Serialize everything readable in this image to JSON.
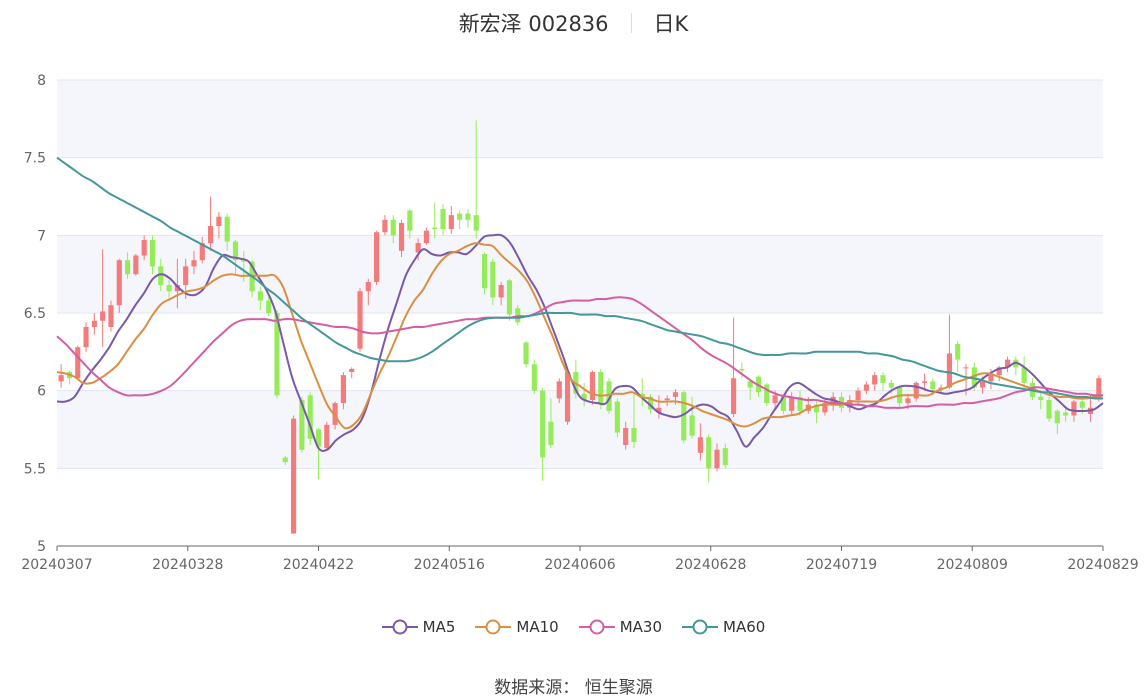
{
  "header": {
    "stock": "新宏泽 002836",
    "period": "日K"
  },
  "source": "数据来源：  恒生聚源",
  "colors": {
    "up": "#f37b7b",
    "down": "#96eb5a",
    "MA5": "#7a59a8",
    "MA10": "#da8f43",
    "MA30": "#d45ea3",
    "MA60": "#44989a"
  },
  "chart_data": {
    "type": "candlestick",
    "ylim": [
      5,
      8
    ],
    "yticks": [
      "5",
      "5.5",
      "6",
      "6.5",
      "7",
      "7.5",
      "8"
    ],
    "xtick_labels": [
      "20240307",
      "20240328",
      "20240422",
      "20240516",
      "20240606",
      "20240628",
      "20240719",
      "20240809",
      "20240829"
    ],
    "grid": true,
    "legend_position": "bottom",
    "candles": [
      [
        6.06,
        6.1,
        6.02,
        6.17
      ],
      [
        6.12,
        6.08,
        6.04,
        6.13
      ],
      [
        6.08,
        6.28,
        6.07,
        6.29
      ],
      [
        6.28,
        6.41,
        6.25,
        6.44
      ],
      [
        6.41,
        6.45,
        6.36,
        6.5
      ],
      [
        6.45,
        6.51,
        6.28,
        6.91
      ],
      [
        6.41,
        6.55,
        6.38,
        6.58
      ],
      [
        6.55,
        6.84,
        6.5,
        6.85
      ],
      [
        6.84,
        6.75,
        6.72,
        6.89
      ],
      [
        6.75,
        6.87,
        6.74,
        6.88
      ],
      [
        6.87,
        6.97,
        6.84,
        7.0
      ],
      [
        6.97,
        6.8,
        6.75,
        7.0
      ],
      [
        6.8,
        6.68,
        6.64,
        6.85
      ],
      [
        6.68,
        6.64,
        6.59,
        6.71
      ],
      [
        6.64,
        6.68,
        6.53,
        6.85
      ],
      [
        6.68,
        6.8,
        6.59,
        6.85
      ],
      [
        6.8,
        6.84,
        6.75,
        6.9
      ],
      [
        6.84,
        6.95,
        6.82,
        6.99
      ],
      [
        6.95,
        7.06,
        6.9,
        7.25
      ],
      [
        7.06,
        7.12,
        6.98,
        7.15
      ],
      [
        7.12,
        6.96,
        6.9,
        7.14
      ],
      [
        6.96,
        6.84,
        6.75,
        6.97
      ],
      [
        6.84,
        6.83,
        6.7,
        6.9
      ],
      [
        6.83,
        6.64,
        6.6,
        6.84
      ],
      [
        6.64,
        6.58,
        6.52,
        6.67
      ],
      [
        6.58,
        6.5,
        6.48,
        6.61
      ],
      [
        6.5,
        5.97,
        5.95,
        6.52
      ],
      [
        5.57,
        5.54,
        5.52,
        5.58
      ],
      [
        5.08,
        5.82,
        5.08,
        5.84
      ],
      [
        5.94,
        5.62,
        5.6,
        5.96
      ],
      [
        5.97,
        5.69,
        5.65,
        5.99
      ],
      [
        5.75,
        5.64,
        5.43,
        5.76
      ],
      [
        5.63,
        5.78,
        5.62,
        5.8
      ],
      [
        5.78,
        5.92,
        5.75,
        5.93
      ],
      [
        5.92,
        6.1,
        5.88,
        6.12
      ],
      [
        6.12,
        6.14,
        6.08,
        6.15
      ],
      [
        6.27,
        6.64,
        6.25,
        6.66
      ],
      [
        6.64,
        6.7,
        6.55,
        6.72
      ],
      [
        6.7,
        7.02,
        6.68,
        7.03
      ],
      [
        7.02,
        7.1,
        7.0,
        7.13
      ],
      [
        7.1,
        7.0,
        6.95,
        7.13
      ],
      [
        6.9,
        7.08,
        6.86,
        7.1
      ],
      [
        7.16,
        7.03,
        6.98,
        7.17
      ],
      [
        6.89,
        6.95,
        6.84,
        6.98
      ],
      [
        6.95,
        7.03,
        6.94,
        7.05
      ],
      [
        7.05,
        7.04,
        6.98,
        7.21
      ],
      [
        7.17,
        7.04,
        7.0,
        7.2
      ],
      [
        7.04,
        7.13,
        7.01,
        7.19
      ],
      [
        7.14,
        7.1,
        7.04,
        7.16
      ],
      [
        7.14,
        7.1,
        7.05,
        7.17
      ],
      [
        7.13,
        7.03,
        6.98,
        7.74
      ],
      [
        6.88,
        6.66,
        6.62,
        6.89
      ],
      [
        6.83,
        6.6,
        6.55,
        6.85
      ],
      [
        6.6,
        6.68,
        6.55,
        6.7
      ],
      [
        6.71,
        6.49,
        6.45,
        6.72
      ],
      [
        6.53,
        6.44,
        6.42,
        6.55
      ],
      [
        6.31,
        6.17,
        6.15,
        6.32
      ],
      [
        6.17,
        6.0,
        5.98,
        6.2
      ],
      [
        6.0,
        5.57,
        5.42,
        6.02
      ],
      [
        5.8,
        5.65,
        5.63,
        5.95
      ],
      [
        5.95,
        6.06,
        5.92,
        6.08
      ],
      [
        5.8,
        6.12,
        5.78,
        6.13
      ],
      [
        6.12,
        5.98,
        5.95,
        6.2
      ],
      [
        5.98,
        5.94,
        5.9,
        6.05
      ],
      [
        5.94,
        6.12,
        5.91,
        6.13
      ],
      [
        6.12,
        5.92,
        5.88,
        6.14
      ],
      [
        6.06,
        5.87,
        5.85,
        6.08
      ],
      [
        5.93,
        5.73,
        5.7,
        5.95
      ],
      [
        5.65,
        5.76,
        5.62,
        5.8
      ],
      [
        5.76,
        5.67,
        5.63,
        5.98
      ],
      [
        5.98,
        5.96,
        5.9,
        6.08
      ],
      [
        5.96,
        5.88,
        5.85,
        5.98
      ],
      [
        5.86,
        5.89,
        5.82,
        5.97
      ],
      [
        5.94,
        5.95,
        5.9,
        5.97
      ],
      [
        5.96,
        5.99,
        5.91,
        6.01
      ],
      [
        5.99,
        5.68,
        5.66,
        6.0
      ],
      [
        5.84,
        5.71,
        5.69,
        5.96
      ],
      [
        5.6,
        5.7,
        5.55,
        5.79
      ],
      [
        5.7,
        5.5,
        5.41,
        5.72
      ],
      [
        5.5,
        5.62,
        5.48,
        5.66
      ],
      [
        5.63,
        5.52,
        5.5,
        5.66
      ],
      [
        5.85,
        6.08,
        5.83,
        6.47
      ],
      [
        6.14,
        6.13,
        6.08,
        6.18
      ],
      [
        6.06,
        6.02,
        5.94,
        6.08
      ],
      [
        6.09,
        5.99,
        5.96,
        6.1
      ],
      [
        6.04,
        5.92,
        5.9,
        6.05
      ],
      [
        5.92,
        5.97,
        5.88,
        6.0
      ],
      [
        5.97,
        5.87,
        5.85,
        5.98
      ],
      [
        5.87,
        5.96,
        5.84,
        5.99
      ],
      [
        5.96,
        5.87,
        5.84,
        6.0
      ],
      [
        5.87,
        5.91,
        5.85,
        5.96
      ],
      [
        5.91,
        5.86,
        5.79,
        5.93
      ],
      [
        5.86,
        5.92,
        5.84,
        5.94
      ],
      [
        5.92,
        5.96,
        5.87,
        5.99
      ],
      [
        5.96,
        5.89,
        5.86,
        5.99
      ],
      [
        5.89,
        5.94,
        5.86,
        5.97
      ],
      [
        5.94,
        6.0,
        5.9,
        6.02
      ],
      [
        6.0,
        6.04,
        5.98,
        6.06
      ],
      [
        6.04,
        6.1,
        6.0,
        6.12
      ],
      [
        6.1,
        6.05,
        6.0,
        6.12
      ],
      [
        6.05,
        6.02,
        5.98,
        6.07
      ],
      [
        6.02,
        5.92,
        5.88,
        6.03
      ],
      [
        5.92,
        5.95,
        5.88,
        5.98
      ],
      [
        5.95,
        6.05,
        5.93,
        6.06
      ],
      [
        6.05,
        6.06,
        6.0,
        6.11
      ],
      [
        6.06,
        6.01,
        5.97,
        6.08
      ],
      [
        6.01,
        6.02,
        5.98,
        6.04
      ],
      [
        6.02,
        6.24,
        6.01,
        6.49
      ],
      [
        6.3,
        6.2,
        6.12,
        6.32
      ],
      [
        6.15,
        6.15,
        5.97,
        6.17
      ],
      [
        6.15,
        6.02,
        6.0,
        6.18
      ],
      [
        6.02,
        6.06,
        5.98,
        6.09
      ],
      [
        6.06,
        6.1,
        6.01,
        6.14
      ],
      [
        6.1,
        6.15,
        6.06,
        6.16
      ],
      [
        6.15,
        6.2,
        6.12,
        6.22
      ],
      [
        6.2,
        6.15,
        6.1,
        6.22
      ],
      [
        6.15,
        6.05,
        6.0,
        6.22
      ],
      [
        6.05,
        5.96,
        5.94,
        6.08
      ],
      [
        5.96,
        5.94,
        5.88,
        5.99
      ],
      [
        5.94,
        5.82,
        5.8,
        5.96
      ],
      [
        5.87,
        5.79,
        5.72,
        5.88
      ],
      [
        5.86,
        5.84,
        5.8,
        5.89
      ],
      [
        5.84,
        5.93,
        5.8,
        5.94
      ],
      [
        5.93,
        5.89,
        5.85,
        5.96
      ],
      [
        5.85,
        5.89,
        5.8,
        5.97
      ],
      [
        5.95,
        6.08,
        5.93,
        6.1
      ]
    ],
    "series": [
      {
        "name": "MA5",
        "values": [
          5.93,
          5.93,
          5.96,
          6.05,
          6.13,
          6.2,
          6.28,
          6.38,
          6.46,
          6.55,
          6.63,
          6.72,
          6.75,
          6.72,
          6.66,
          6.62,
          6.62,
          6.67,
          6.79,
          6.87,
          6.86,
          6.85,
          6.83,
          6.74,
          6.65,
          6.52,
          6.3,
          6.08,
          5.93,
          5.78,
          5.63,
          5.62,
          5.68,
          5.72,
          5.75,
          5.82,
          5.98,
          6.2,
          6.4,
          6.57,
          6.74,
          6.84,
          6.91,
          6.88,
          6.87,
          6.89,
          6.89,
          6.88,
          6.93,
          6.99,
          7.0,
          7.0,
          6.95,
          6.85,
          6.74,
          6.65,
          6.53,
          6.38,
          6.23,
          6.07,
          5.96,
          5.93,
          5.92,
          5.92,
          6.01,
          6.03,
          6.02,
          5.96,
          5.91,
          5.86,
          5.84,
          5.83,
          5.85,
          5.89,
          5.91,
          5.9,
          5.86,
          5.83,
          5.74,
          5.64,
          5.7,
          5.76,
          5.85,
          5.93,
          6.02,
          6.05,
          6.02,
          5.98,
          5.95,
          5.94,
          5.92,
          5.9,
          5.88,
          5.9,
          5.92,
          5.97,
          6.01,
          6.03,
          6.03,
          6.02,
          6.0,
          5.99,
          5.98,
          5.99,
          6.0,
          6.02,
          6.07,
          6.11,
          6.14,
          6.15,
          6.18,
          6.15,
          6.1,
          6.04,
          5.98,
          5.93,
          5.88,
          5.87,
          5.87,
          5.88,
          5.92
        ]
      },
      {
        "name": "MA10",
        "values": [
          6.12,
          6.11,
          6.09,
          6.05,
          6.05,
          6.08,
          6.12,
          6.17,
          6.25,
          6.33,
          6.4,
          6.49,
          6.56,
          6.59,
          6.62,
          6.64,
          6.65,
          6.67,
          6.71,
          6.74,
          6.75,
          6.74,
          6.74,
          6.74,
          6.74,
          6.74,
          6.66,
          6.49,
          6.32,
          6.18,
          6.04,
          5.91,
          5.83,
          5.76,
          5.78,
          5.85,
          5.98,
          6.11,
          6.22,
          6.35,
          6.48,
          6.58,
          6.65,
          6.75,
          6.83,
          6.88,
          6.9,
          6.93,
          6.95,
          6.94,
          6.93,
          6.87,
          6.82,
          6.77,
          6.7,
          6.59,
          6.46,
          6.33,
          6.18,
          6.07,
          6.03,
          5.99,
          5.97,
          5.97,
          5.98,
          5.98,
          5.99,
          5.96,
          5.95,
          5.93,
          5.93,
          5.93,
          5.92,
          5.9,
          5.87,
          5.85,
          5.83,
          5.81,
          5.78,
          5.77,
          5.79,
          5.82,
          5.83,
          5.83,
          5.84,
          5.85,
          5.88,
          5.9,
          5.91,
          5.91,
          5.91,
          5.93,
          5.93,
          5.93,
          5.93,
          5.94,
          5.96,
          5.97,
          5.97,
          5.97,
          5.97,
          6.0,
          6.02,
          6.05,
          6.07,
          6.09,
          6.11,
          6.11,
          6.09,
          6.07,
          6.05,
          6.03,
          6.01,
          5.99,
          5.97,
          5.96,
          5.96,
          5.95,
          5.95,
          5.96,
          5.97
        ]
      },
      {
        "name": "MA30",
        "values": [
          6.35,
          6.3,
          6.24,
          6.18,
          6.12,
          6.07,
          6.02,
          5.99,
          5.97,
          5.97,
          5.97,
          5.98,
          6.0,
          6.03,
          6.08,
          6.14,
          6.2,
          6.26,
          6.32,
          6.37,
          6.42,
          6.45,
          6.46,
          6.46,
          6.46,
          6.45,
          6.46,
          6.46,
          6.45,
          6.44,
          6.43,
          6.42,
          6.41,
          6.41,
          6.4,
          6.38,
          6.37,
          6.37,
          6.38,
          6.39,
          6.4,
          6.41,
          6.41,
          6.42,
          6.43,
          6.44,
          6.45,
          6.46,
          6.46,
          6.47,
          6.47,
          6.47,
          6.47,
          6.48,
          6.48,
          6.5,
          6.53,
          6.56,
          6.57,
          6.58,
          6.58,
          6.58,
          6.59,
          6.59,
          6.6,
          6.6,
          6.59,
          6.56,
          6.52,
          6.48,
          6.44,
          6.4,
          6.36,
          6.32,
          6.27,
          6.23,
          6.2,
          6.17,
          6.13,
          6.09,
          6.05,
          6.02,
          5.99,
          5.97,
          5.96,
          5.95,
          5.94,
          5.94,
          5.93,
          5.92,
          5.92,
          5.91,
          5.91,
          5.9,
          5.9,
          5.89,
          5.89,
          5.89,
          5.9,
          5.9,
          5.9,
          5.91,
          5.91,
          5.91,
          5.92,
          5.92,
          5.93,
          5.94,
          5.95,
          5.97,
          5.99,
          6.0,
          6.02,
          6.02,
          6.01,
          6.0,
          5.99,
          5.98,
          5.98,
          5.97,
          5.97
        ]
      },
      {
        "name": "MA60",
        "values": [
          7.5,
          7.46,
          7.42,
          7.38,
          7.35,
          7.31,
          7.27,
          7.24,
          7.21,
          7.18,
          7.15,
          7.12,
          7.09,
          7.05,
          7.02,
          6.99,
          6.96,
          6.93,
          6.9,
          6.87,
          6.83,
          6.79,
          6.75,
          6.71,
          6.66,
          6.62,
          6.57,
          6.52,
          6.47,
          6.43,
          6.39,
          6.35,
          6.31,
          6.28,
          6.25,
          6.23,
          6.21,
          6.2,
          6.19,
          6.19,
          6.19,
          6.2,
          6.22,
          6.25,
          6.29,
          6.33,
          6.37,
          6.41,
          6.44,
          6.46,
          6.47,
          6.47,
          6.47,
          6.47,
          6.48,
          6.49,
          6.5,
          6.5,
          6.5,
          6.5,
          6.49,
          6.49,
          6.49,
          6.48,
          6.48,
          6.47,
          6.46,
          6.45,
          6.43,
          6.41,
          6.39,
          6.38,
          6.37,
          6.36,
          6.35,
          6.33,
          6.31,
          6.3,
          6.28,
          6.26,
          6.24,
          6.23,
          6.23,
          6.23,
          6.24,
          6.24,
          6.24,
          6.25,
          6.25,
          6.25,
          6.25,
          6.25,
          6.25,
          6.24,
          6.24,
          6.23,
          6.22,
          6.2,
          6.19,
          6.17,
          6.15,
          6.13,
          6.12,
          6.11,
          6.09,
          6.08,
          6.07,
          6.05,
          6.04,
          6.03,
          6.02,
          6.01,
          6.0,
          5.99,
          5.99,
          5.98,
          5.97,
          5.96,
          5.96,
          5.95,
          5.95
        ]
      }
    ]
  }
}
